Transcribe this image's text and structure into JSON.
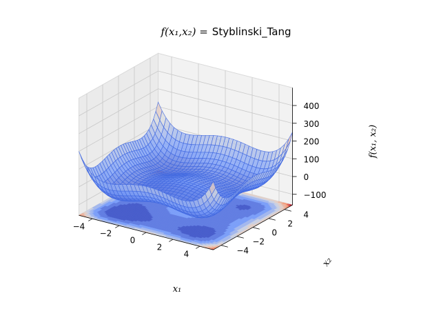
{
  "chart_data": {
    "type": "surface3d",
    "function_name": "Styblinski_Tang",
    "title_prefix": "f(x₁,x₂) =",
    "title_name": "Styblinski_Tang",
    "xlabel": "x₁",
    "ylabel": "x₂",
    "zlabel": "f(x₁, x₂)",
    "xlim": [
      -5,
      5
    ],
    "ylim": [
      -5,
      5
    ],
    "zlim": [
      -160,
      500
    ],
    "xticks": [
      -4,
      -2,
      0,
      2,
      4
    ],
    "yticks": [
      -4,
      -2,
      0,
      2,
      4
    ],
    "zticks": [
      -100,
      0,
      100,
      200,
      300,
      400
    ],
    "global_min": {
      "x1": -2.9035,
      "x2": -2.9035,
      "f": -78.33
    },
    "colormap": "coolwarm",
    "wireframe_color": "#4169e1",
    "grid": true
  }
}
